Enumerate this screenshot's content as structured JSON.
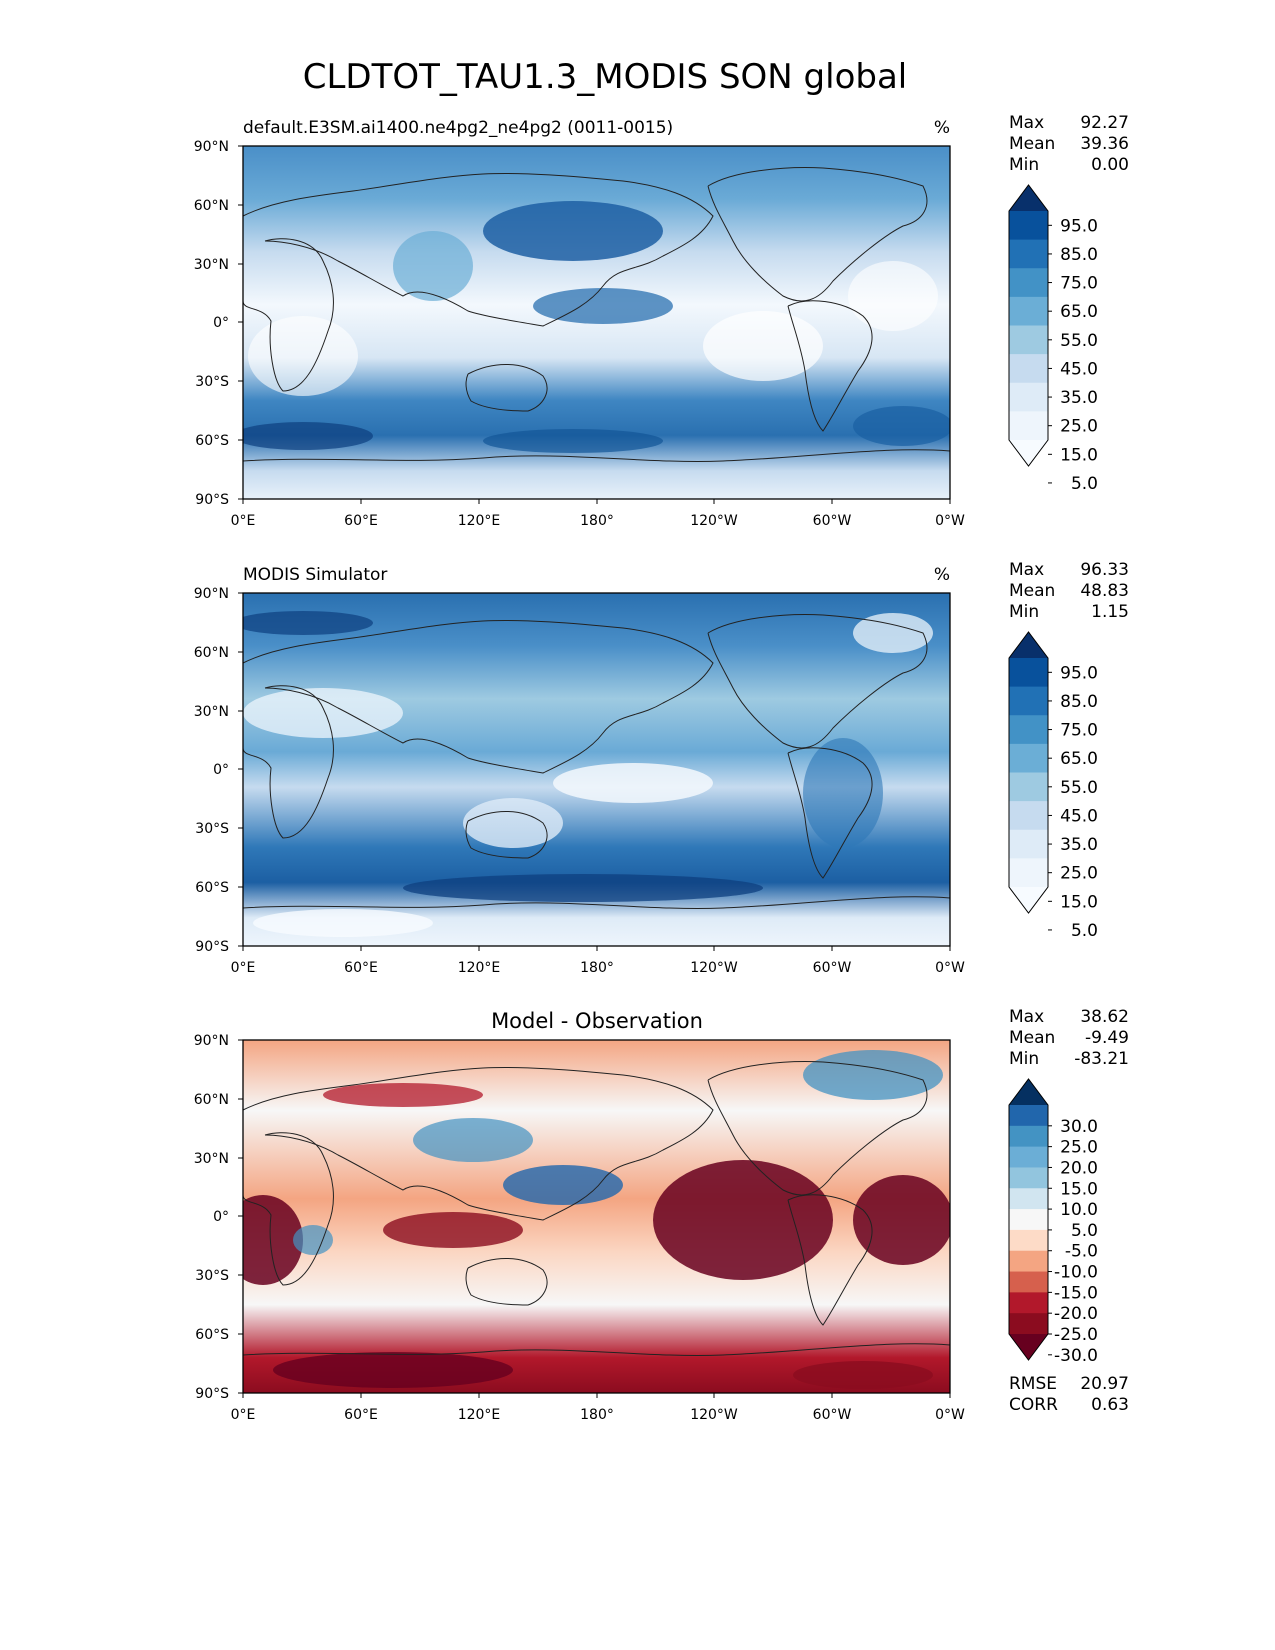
{
  "title": "CLDTOT_TAU1.3_MODIS SON global",
  "lat_ticks": [
    "90°N",
    "60°N",
    "30°N",
    "0°",
    "30°S",
    "60°S",
    "90°S"
  ],
  "lon_ticks": [
    "0°E",
    "60°E",
    "120°E",
    "180°",
    "120°W",
    "60°W",
    "0°W"
  ],
  "panels": [
    {
      "id": "model",
      "left_title": "default.E3SM.ai1400.ne4pg2_ne4pg2 (0011-0015)",
      "center_title": "",
      "units": "%",
      "stats": [
        {
          "label": "Max",
          "value": "92.27"
        },
        {
          "label": "Mean",
          "value": "39.36"
        },
        {
          "label": "Min",
          "value": "0.00"
        }
      ],
      "colorbar": {
        "labels": [
          "95.0",
          "85.0",
          "75.0",
          "65.0",
          "55.0",
          "45.0",
          "35.0",
          "25.0",
          "15.0",
          "5.0"
        ],
        "colors": [
          "#08306b",
          "#08519c",
          "#2171b5",
          "#4292c6",
          "#6baed6",
          "#9ecae1",
          "#c6dbef",
          "#deebf7",
          "#eef5fc",
          "#f7fbff"
        ]
      },
      "extra_stats": []
    },
    {
      "id": "obs",
      "left_title": "MODIS Simulator",
      "center_title": "",
      "units": "%",
      "stats": [
        {
          "label": "Max",
          "value": "96.33"
        },
        {
          "label": "Mean",
          "value": "48.83"
        },
        {
          "label": "Min",
          "value": "1.15"
        }
      ],
      "colorbar": {
        "labels": [
          "95.0",
          "85.0",
          "75.0",
          "65.0",
          "55.0",
          "45.0",
          "35.0",
          "25.0",
          "15.0",
          "5.0"
        ],
        "colors": [
          "#08306b",
          "#08519c",
          "#2171b5",
          "#4292c6",
          "#6baed6",
          "#9ecae1",
          "#c6dbef",
          "#deebf7",
          "#eef5fc",
          "#f7fbff"
        ]
      },
      "extra_stats": []
    },
    {
      "id": "diff",
      "left_title": "",
      "center_title": "Model - Observation",
      "units": "",
      "stats": [
        {
          "label": "Max",
          "value": "38.62"
        },
        {
          "label": "Mean",
          "value": "-9.49"
        },
        {
          "label": "Min",
          "value": "-83.21"
        }
      ],
      "colorbar": {
        "labels": [
          "30.0",
          "25.0",
          "20.0",
          "15.0",
          "10.0",
          "5.0",
          "-5.0",
          "-10.0",
          "-15.0",
          "-20.0",
          "-25.0",
          "-30.0"
        ],
        "colors": [
          "#053061",
          "#2166ac",
          "#4393c3",
          "#6baed6",
          "#92c5de",
          "#d1e5f0",
          "#f7f7f7",
          "#fddbc7",
          "#f4a582",
          "#d6604d",
          "#b2182b",
          "#8b0c1f",
          "#67001f"
        ]
      },
      "extra_stats": [
        {
          "label": "RMSE",
          "value": "20.97"
        },
        {
          "label": "CORR",
          "value": "0.63"
        }
      ]
    }
  ]
}
